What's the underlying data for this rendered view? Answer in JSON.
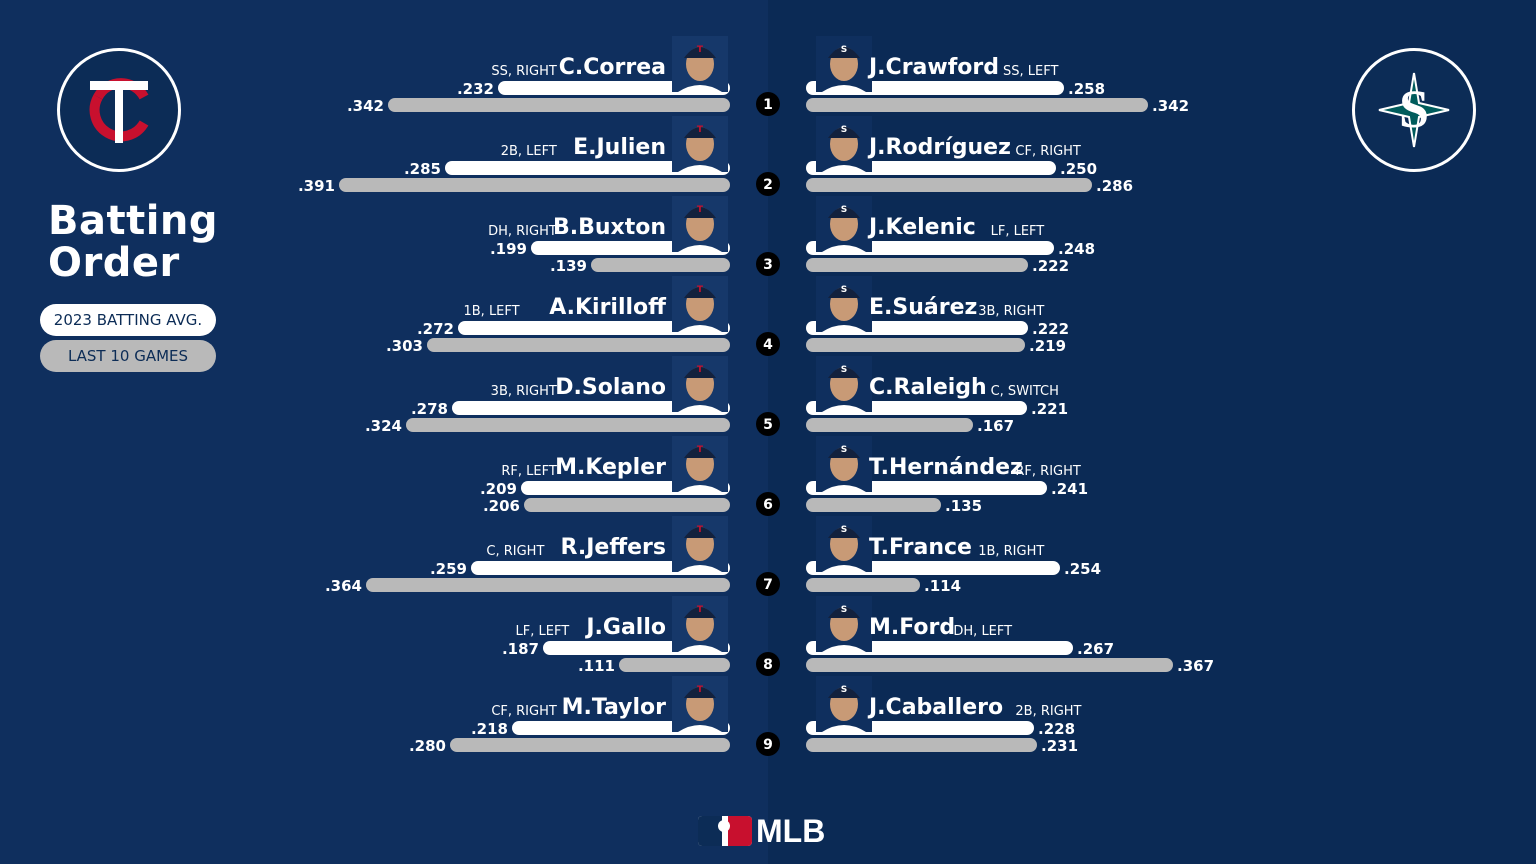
{
  "title_line1": "Batting",
  "title_line2": "Order",
  "legend": {
    "avg_label": "2023 BATTING AVG.",
    "last10_label": "LAST 10 GAMES"
  },
  "brand": "MLB",
  "colors": {
    "background": "#0c2c56",
    "avg_bar": "#ffffff",
    "last10_bar": "#b9b9b9",
    "twins_red": "#c8102e",
    "mariners_teal": "#005c5c"
  },
  "teams": {
    "left": "twins-logo",
    "right": "mariners-logo"
  },
  "chart_data": {
    "type": "bar",
    "series": [
      {
        "name": "2023 BATTING AVG."
      },
      {
        "name": "LAST 10 GAMES"
      }
    ],
    "orders": [
      "1",
      "2",
      "3",
      "4",
      "5",
      "6",
      "7",
      "8",
      "9"
    ],
    "left_team": [
      {
        "name": "C.Correa",
        "pos": "SS, RIGHT",
        "avg": ".232",
        "last10": ".342"
      },
      {
        "name": "E.Julien",
        "pos": "2B, LEFT",
        "avg": ".285",
        "last10": ".391"
      },
      {
        "name": "B.Buxton",
        "pos": "DH, RIGHT",
        "avg": ".199",
        "last10": ".139"
      },
      {
        "name": "A.Kirilloff",
        "pos": "1B, LEFT",
        "avg": ".272",
        "last10": ".303"
      },
      {
        "name": "D.Solano",
        "pos": "3B, RIGHT",
        "avg": ".278",
        "last10": ".324"
      },
      {
        "name": "M.Kepler",
        "pos": "RF, LEFT",
        "avg": ".209",
        "last10": ".206"
      },
      {
        "name": "R.Jeffers",
        "pos": "C, RIGHT",
        "avg": ".259",
        "last10": ".364"
      },
      {
        "name": "J.Gallo",
        "pos": "LF, LEFT",
        "avg": ".187",
        "last10": ".111"
      },
      {
        "name": "M.Taylor",
        "pos": "CF, RIGHT",
        "avg": ".218",
        "last10": ".280"
      }
    ],
    "right_team": [
      {
        "name": "J.Crawford",
        "pos": "SS, LEFT",
        "avg": ".258",
        "last10": ".342"
      },
      {
        "name": "J.Rodríguez",
        "pos": "CF, RIGHT",
        "avg": ".250",
        "last10": ".286"
      },
      {
        "name": "J.Kelenic",
        "pos": "LF, LEFT",
        "avg": ".248",
        "last10": ".222"
      },
      {
        "name": "E.Suárez",
        "pos": "3B, RIGHT",
        "avg": ".222",
        "last10": ".219"
      },
      {
        "name": "C.Raleigh",
        "pos": "C, SWITCH",
        "avg": ".221",
        "last10": ".167"
      },
      {
        "name": "T.Hernández",
        "pos": "RF, RIGHT",
        "avg": ".241",
        "last10": ".135"
      },
      {
        "name": "T.France",
        "pos": "1B, RIGHT",
        "avg": ".254",
        "last10": ".114"
      },
      {
        "name": "M.Ford",
        "pos": "DH, LEFT",
        "avg": ".267",
        "last10": ".367"
      },
      {
        "name": "J.Caballero",
        "pos": "2B, RIGHT",
        "avg": ".228",
        "last10": ".231"
      }
    ]
  }
}
